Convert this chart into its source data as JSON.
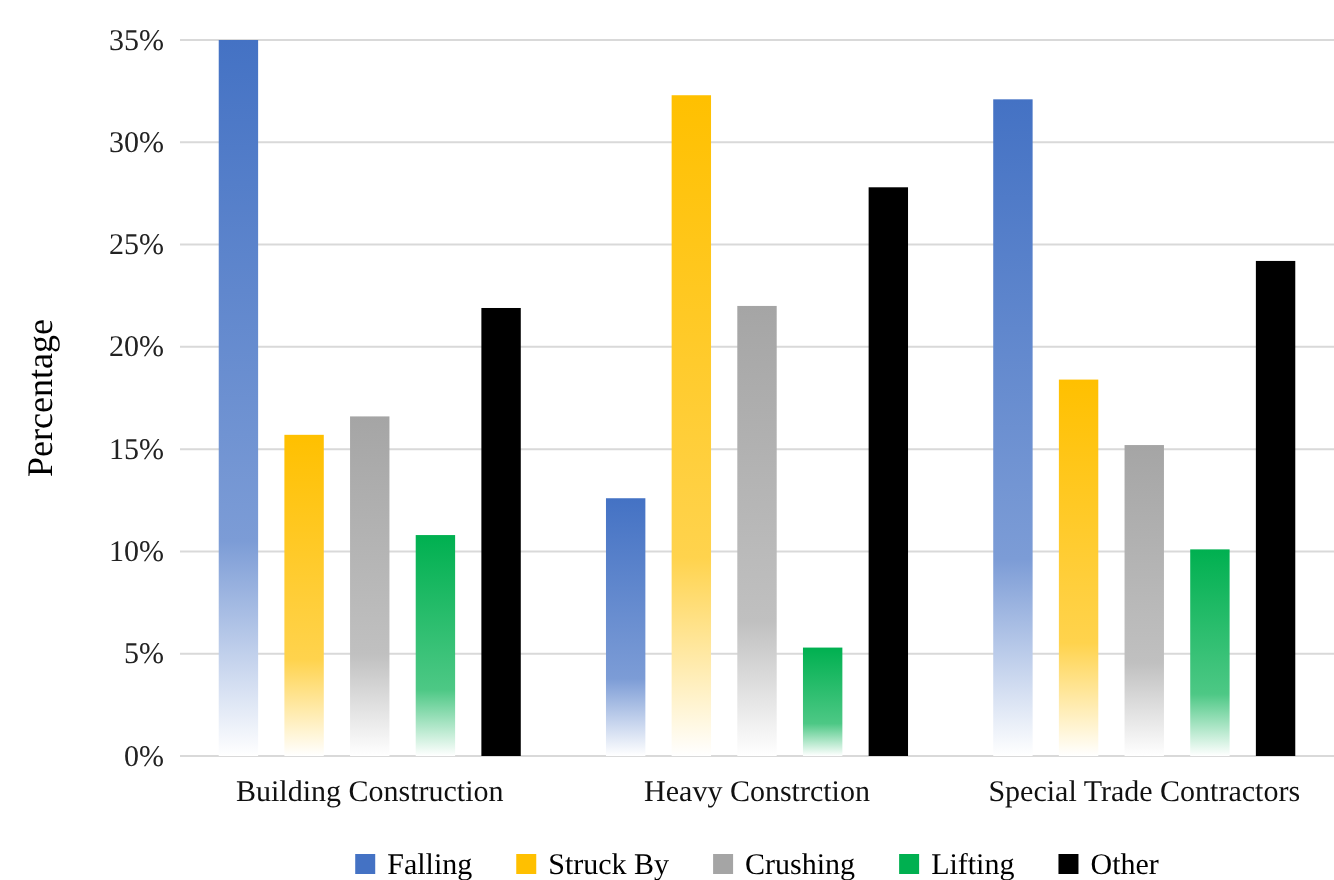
{
  "chart_data": {
    "type": "bar",
    "ylabel": "Percentage",
    "categories": [
      "Building Construction",
      "Heavy Constrction",
      "Special Trade Contractors"
    ],
    "series": [
      {
        "name": "Falling",
        "color": "#4472c4",
        "values": [
          35,
          12.6,
          32.1
        ]
      },
      {
        "name": "Struck By",
        "color": "#ffc000",
        "values": [
          15.7,
          32.3,
          18.4
        ]
      },
      {
        "name": "Crushing",
        "color": "#a5a5a5",
        "values": [
          16.6,
          22.0,
          15.2
        ]
      },
      {
        "name": "Lifting",
        "color": "#00b050",
        "values": [
          10.8,
          5.3,
          10.1
        ]
      },
      {
        "name": "Other",
        "color": "#000000",
        "values": [
          21.9,
          27.8,
          24.2
        ]
      }
    ],
    "ylim": [
      0,
      35
    ],
    "yticks": [
      {
        "value": 0,
        "label": "0%"
      },
      {
        "value": 5,
        "label": "5%"
      },
      {
        "value": 10,
        "label": "10%"
      },
      {
        "value": 15,
        "label": "15%"
      },
      {
        "value": 20,
        "label": "20%"
      },
      {
        "value": 25,
        "label": "25%"
      },
      {
        "value": 30,
        "label": "30%"
      },
      {
        "value": 35,
        "label": "35%"
      }
    ],
    "grid": "y",
    "legend": "bottom"
  }
}
